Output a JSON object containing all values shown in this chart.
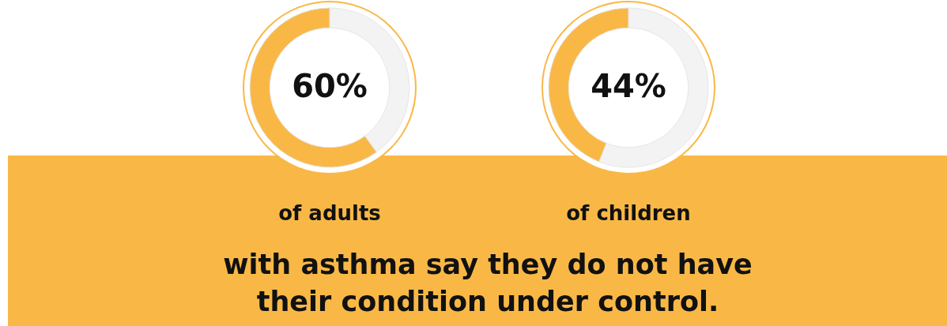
{
  "chart_data": [
    {
      "type": "donut",
      "categories": [
        null,
        null
      ],
      "values": [
        60,
        40
      ],
      "colors": [
        "#f9b846",
        "#f3f3f3"
      ],
      "value_labels": [
        "60%",
        null
      ],
      "annotations": [
        "of adults"
      ]
    },
    {
      "type": "donut",
      "categories": [
        null,
        null
      ],
      "values": [
        44,
        56
      ],
      "colors": [
        "#f9b846",
        "#f3f3f3"
      ],
      "value_labels": [
        "44%",
        null
      ],
      "annotations": [
        "of children"
      ]
    },
    {
      "type": "other",
      "annotations": [
        "with asthma say they do not have their condition under control."
      ]
    }
  ]
}
